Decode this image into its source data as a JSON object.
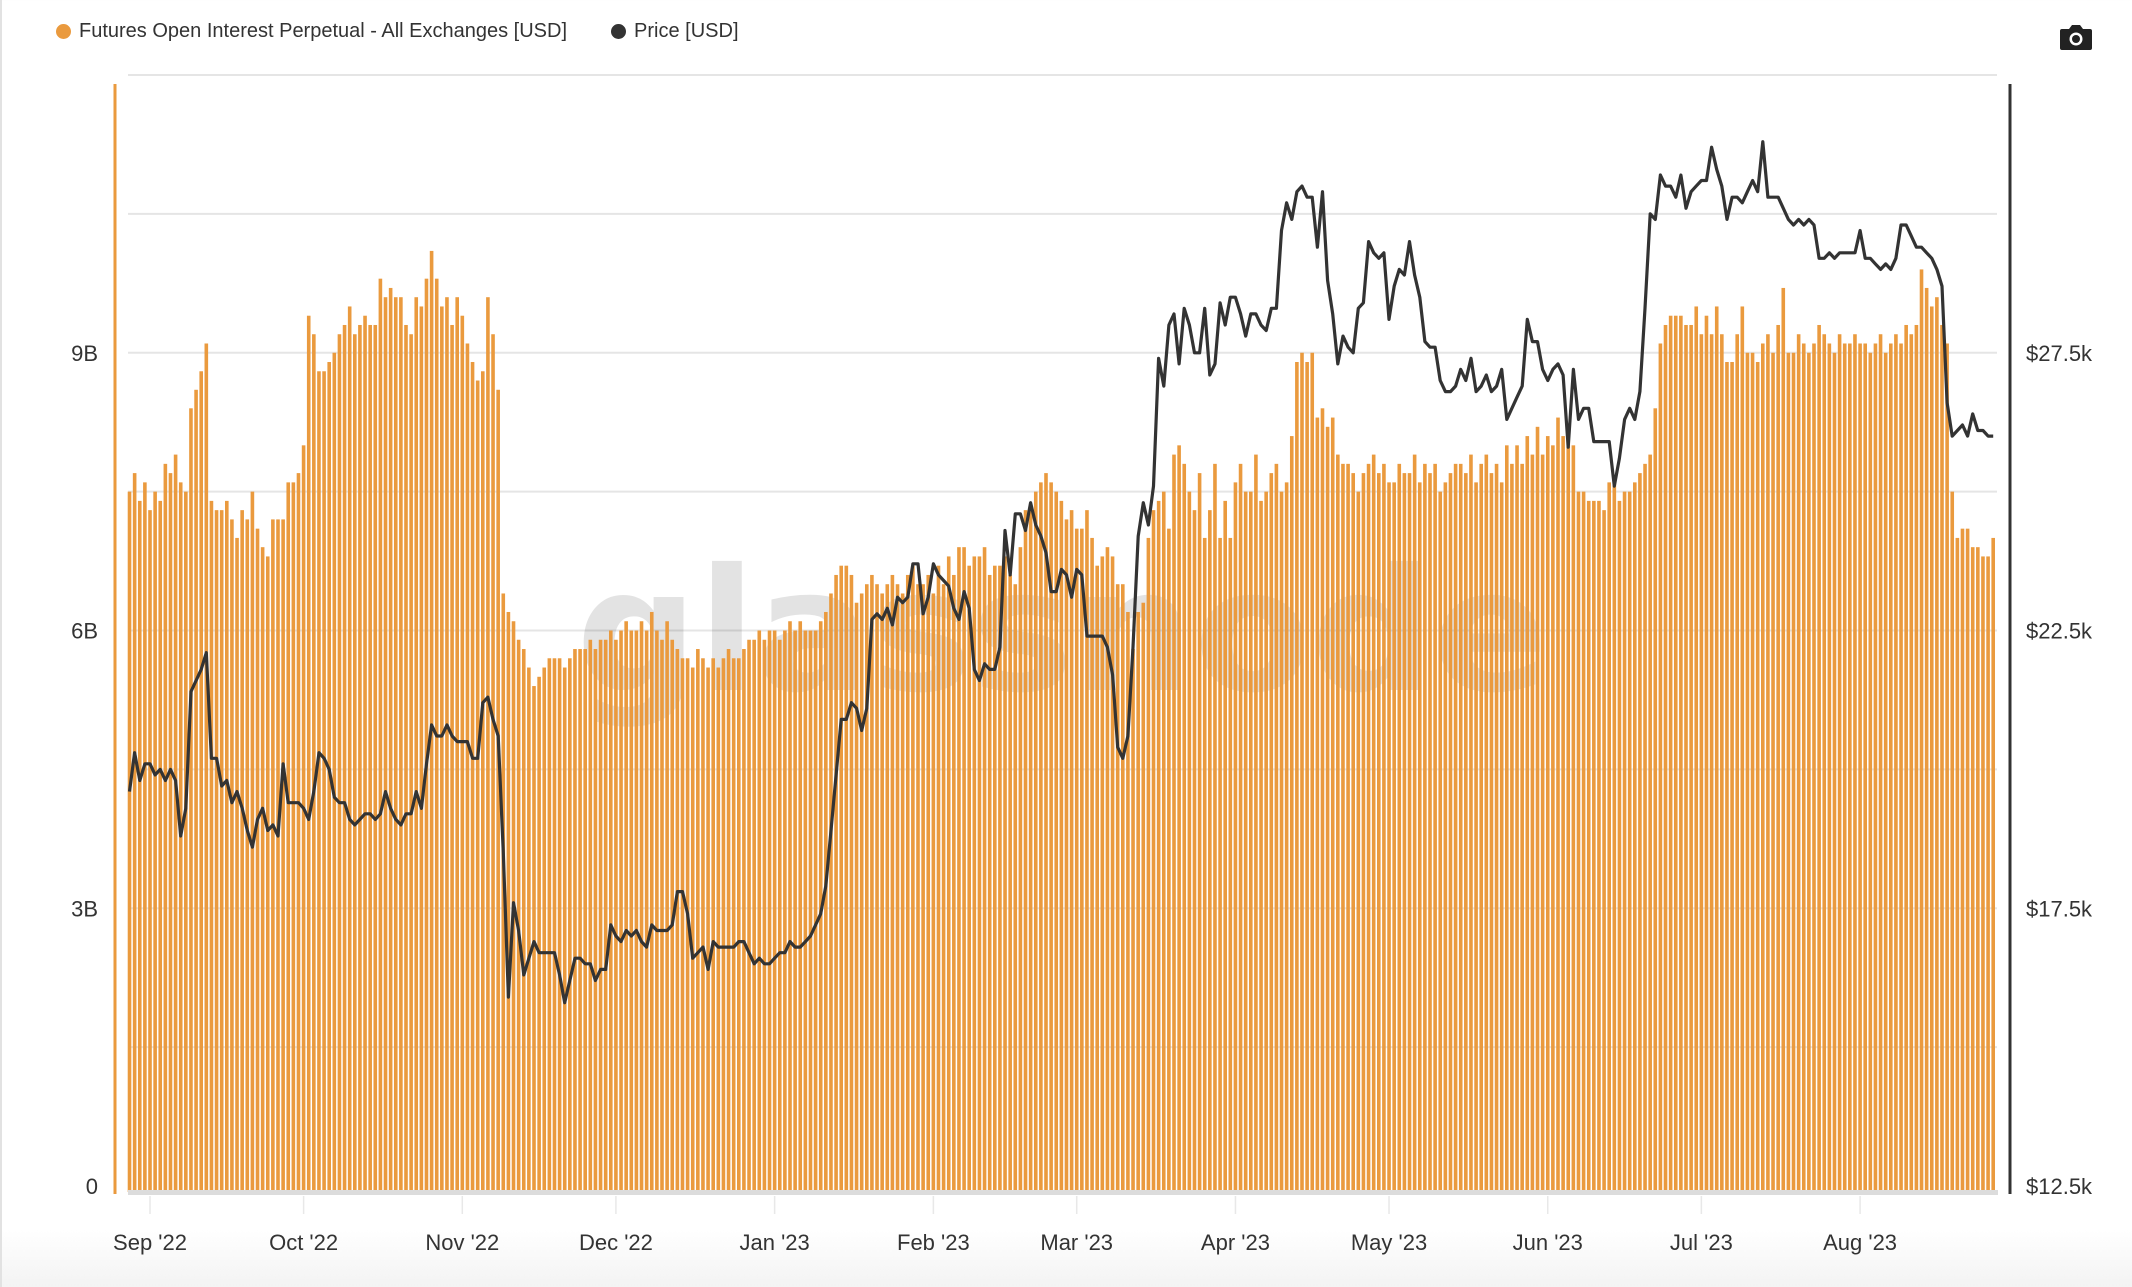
{
  "legend": [
    {
      "label": "Futures Open Interest Perpetual - All Exchanges [USD]",
      "color": "#ea9a3e"
    },
    {
      "label": "Price [USD]",
      "color": "#333333"
    }
  ],
  "toolbar": {
    "screenshot_icon": "camera-icon"
  },
  "watermark": "glassnode",
  "chart_data": {
    "type": "bar+line",
    "series": [
      {
        "name": "Futures Open Interest Perpetual - All Exchanges [USD]",
        "type": "bar",
        "axis": "left",
        "unit": "B USD",
        "color": "#ea9a3e"
      },
      {
        "name": "Price [USD]",
        "type": "line",
        "axis": "right",
        "unit": "k USD",
        "color": "#333333"
      }
    ],
    "left_axis": {
      "ylim": [
        0,
        12
      ],
      "ticks": [
        0,
        3,
        6,
        9
      ],
      "tick_labels": [
        "0",
        "3B",
        "6B",
        "9B"
      ],
      "gridline_step": 1.5
    },
    "right_axis": {
      "ylim": [
        12.5,
        32.5
      ],
      "ticks": [
        12.5,
        17.5,
        22.5,
        27.5
      ],
      "tick_labels": [
        "$12.5k",
        "$17.5k",
        "$22.5k",
        "$27.5k"
      ]
    },
    "x_ticks": [
      {
        "date": "2022-09-01",
        "label": "Sep '22"
      },
      {
        "date": "2022-10-01",
        "label": "Oct '22"
      },
      {
        "date": "2022-11-01",
        "label": "Nov '22"
      },
      {
        "date": "2022-12-01",
        "label": "Dec '22"
      },
      {
        "date": "2023-01-01",
        "label": "Jan '23"
      },
      {
        "date": "2023-02-01",
        "label": "Feb '23"
      },
      {
        "date": "2023-03-01",
        "label": "Mar '23"
      },
      {
        "date": "2023-04-01",
        "label": "Apr '23"
      },
      {
        "date": "2023-05-01",
        "label": "May '23"
      },
      {
        "date": "2023-06-01",
        "label": "Jun '23"
      },
      {
        "date": "2023-07-01",
        "label": "Jul '23"
      },
      {
        "date": "2023-08-01",
        "label": "Aug '23"
      }
    ],
    "grid": true,
    "legend_position": "top-left",
    "daily": [
      {
        "month": "2022-08",
        "day_range": [
          28,
          31
        ],
        "oi": [
          7.5,
          7.7,
          7.4,
          7.6
        ],
        "price": [
          19.6,
          20.3,
          19.8,
          20.1
        ]
      },
      {
        "month": "2022-09",
        "day_range": [
          1,
          30
        ],
        "oi": [
          7.3,
          7.5,
          7.4,
          7.8,
          7.7,
          7.9,
          7.6,
          7.5,
          8.4,
          8.6,
          8.8,
          9.1,
          7.4,
          7.3,
          7.3,
          7.4,
          7.2,
          7.0,
          7.3,
          7.2,
          7.5,
          7.1,
          6.9,
          6.8,
          7.2,
          7.2,
          7.2,
          7.6,
          7.6,
          7.7
        ],
        "price": [
          20.1,
          19.9,
          20.0,
          19.8,
          20.0,
          19.8,
          18.8,
          19.3,
          21.4,
          21.6,
          21.8,
          22.1,
          20.2,
          20.2,
          19.7,
          19.8,
          19.4,
          19.6,
          19.3,
          18.9,
          18.6,
          19.1,
          19.3,
          18.9,
          19.0,
          18.8,
          20.1,
          19.4,
          19.4,
          19.4
        ]
      },
      {
        "month": "2022-10",
        "day_range": [
          1,
          31
        ],
        "oi": [
          8.0,
          9.4,
          9.2,
          8.8,
          8.8,
          8.9,
          9.0,
          9.2,
          9.3,
          9.5,
          9.2,
          9.3,
          9.4,
          9.3,
          9.3,
          9.8,
          9.6,
          9.7,
          9.6,
          9.6,
          9.3,
          9.2,
          9.6,
          9.5,
          9.8,
          10.1,
          9.8,
          9.5,
          9.6,
          9.3,
          9.6
        ],
        "price": [
          19.3,
          19.1,
          19.6,
          20.3,
          20.2,
          20.0,
          19.5,
          19.4,
          19.4,
          19.1,
          19.0,
          19.1,
          19.2,
          19.2,
          19.1,
          19.2,
          19.6,
          19.3,
          19.1,
          19.0,
          19.2,
          19.2,
          19.6,
          19.3,
          20.1,
          20.8,
          20.6,
          20.6,
          20.8,
          20.6,
          20.5
        ]
      },
      {
        "month": "2022-11",
        "day_range": [
          1,
          30
        ],
        "oi": [
          9.4,
          9.1,
          8.9,
          8.7,
          8.8,
          9.6,
          9.2,
          8.6,
          6.4,
          6.2,
          6.1,
          5.9,
          5.8,
          5.6,
          5.4,
          5.5,
          5.6,
          5.7,
          5.7,
          5.7,
          5.6,
          5.7,
          5.8,
          5.8,
          5.8,
          5.9,
          5.8,
          5.9,
          5.9,
          6.0
        ],
        "price": [
          20.5,
          20.5,
          20.2,
          20.2,
          21.2,
          21.3,
          20.9,
          20.6,
          18.5,
          15.9,
          17.6,
          17.1,
          16.3,
          16.6,
          16.9,
          16.7,
          16.7,
          16.7,
          16.7,
          16.3,
          15.8,
          16.2,
          16.6,
          16.6,
          16.5,
          16.5,
          16.2,
          16.4,
          16.4,
          17.2
        ]
      },
      {
        "month": "2022-12",
        "day_range": [
          1,
          31
        ],
        "oi": [
          5.9,
          6.0,
          6.1,
          6.0,
          6.0,
          6.1,
          6.0,
          6.2,
          6.0,
          5.9,
          6.1,
          5.9,
          5.8,
          5.7,
          5.7,
          5.6,
          5.8,
          5.7,
          5.6,
          5.7,
          5.6,
          5.7,
          5.8,
          5.7,
          5.7,
          5.8,
          5.9,
          5.9,
          6.0,
          5.9,
          6.0
        ],
        "price": [
          17.0,
          16.9,
          17.1,
          17.0,
          17.1,
          16.9,
          16.8,
          17.2,
          17.1,
          17.1,
          17.1,
          17.2,
          17.8,
          17.8,
          17.4,
          16.6,
          16.7,
          16.8,
          16.4,
          16.9,
          16.8,
          16.8,
          16.8,
          16.8,
          16.9,
          16.9,
          16.7,
          16.5,
          16.6,
          16.5,
          16.5
        ]
      },
      {
        "month": "2023-01",
        "day_range": [
          1,
          31
        ],
        "oi": [
          6.0,
          5.9,
          6.0,
          6.1,
          6.0,
          6.1,
          6.0,
          6.0,
          6.0,
          6.1,
          6.2,
          6.4,
          6.6,
          6.7,
          6.7,
          6.6,
          6.3,
          6.4,
          6.5,
          6.6,
          6.5,
          6.4,
          6.5,
          6.6,
          6.5,
          6.4,
          6.6,
          6.7,
          6.5,
          6.5,
          6.6
        ],
        "price": [
          16.6,
          16.7,
          16.7,
          16.9,
          16.8,
          16.8,
          16.9,
          17.0,
          17.2,
          17.4,
          17.9,
          18.9,
          19.9,
          20.9,
          20.9,
          21.2,
          21.1,
          20.7,
          21.1,
          22.7,
          22.8,
          22.7,
          22.9,
          22.6,
          23.1,
          23.0,
          23.1,
          23.7,
          23.7,
          22.8,
          23.1
        ]
      },
      {
        "month": "2023-02",
        "day_range": [
          1,
          28
        ],
        "oi": [
          6.4,
          6.7,
          6.5,
          6.8,
          6.6,
          6.9,
          6.9,
          6.7,
          6.8,
          6.8,
          6.9,
          6.6,
          6.7,
          6.7,
          6.8,
          6.6,
          6.5,
          6.9,
          7.3,
          7.3,
          7.5,
          7.6,
          7.7,
          7.6,
          7.5,
          7.4,
          7.2,
          7.3
        ],
        "price": [
          23.7,
          23.5,
          23.4,
          23.3,
          22.9,
          22.7,
          23.2,
          22.9,
          21.8,
          21.6,
          21.9,
          21.8,
          21.8,
          22.2,
          24.3,
          23.5,
          24.6,
          24.6,
          24.3,
          24.8,
          24.4,
          24.2,
          23.9,
          23.2,
          23.2,
          23.6,
          23.5,
          23.1
        ]
      },
      {
        "month": "2023-03",
        "day_range": [
          1,
          31
        ],
        "oi": [
          7.1,
          7.1,
          7.3,
          7.0,
          6.7,
          6.8,
          6.9,
          6.8,
          6.5,
          6.5,
          6.2,
          5.8,
          6.2,
          6.3,
          7.0,
          7.3,
          7.4,
          7.5,
          7.1,
          7.9,
          8.0,
          7.8,
          7.5,
          7.3,
          7.7,
          7.0,
          7.3,
          7.8,
          7.0,
          7.4,
          7.0
        ],
        "price": [
          23.6,
          23.5,
          22.4,
          22.4,
          22.4,
          22.4,
          22.2,
          21.7,
          20.4,
          20.2,
          20.6,
          22.2,
          24.2,
          24.8,
          24.4,
          25.1,
          27.4,
          26.9,
          28.0,
          28.2,
          27.3,
          28.3,
          28.0,
          27.5,
          27.5,
          28.3,
          27.1,
          27.3,
          28.4,
          28.0,
          28.5
        ]
      },
      {
        "month": "2023-04",
        "day_range": [
          1,
          30
        ],
        "oi": [
          7.6,
          7.8,
          7.5,
          7.5,
          7.9,
          7.4,
          7.5,
          7.7,
          7.8,
          7.5,
          7.6,
          8.1,
          8.9,
          9.0,
          8.9,
          9.0,
          8.3,
          8.4,
          8.2,
          8.3,
          7.9,
          7.8,
          7.8,
          7.7,
          7.5,
          7.7,
          7.8,
          7.9,
          7.7,
          7.8
        ],
        "price": [
          28.5,
          28.2,
          27.8,
          28.2,
          28.2,
          28.0,
          27.9,
          28.3,
          28.3,
          29.7,
          30.2,
          29.9,
          30.4,
          30.5,
          30.3,
          30.3,
          29.4,
          30.4,
          28.8,
          28.2,
          27.3,
          27.8,
          27.6,
          27.5,
          28.3,
          28.4,
          29.5,
          29.3,
          29.2,
          29.3
        ]
      },
      {
        "month": "2023-05",
        "day_range": [
          1,
          31
        ],
        "oi": [
          7.6,
          7.6,
          7.8,
          7.7,
          7.7,
          7.9,
          7.6,
          7.8,
          7.7,
          7.8,
          7.5,
          7.6,
          7.7,
          7.8,
          7.8,
          7.7,
          7.9,
          7.6,
          7.8,
          7.9,
          7.7,
          7.8,
          7.6,
          8.0,
          7.8,
          8.0,
          7.8,
          8.1,
          7.9,
          8.2,
          7.9
        ],
        "price": [
          28.1,
          28.7,
          29.0,
          28.9,
          29.5,
          28.9,
          28.5,
          27.7,
          27.6,
          27.6,
          27.0,
          26.8,
          26.8,
          26.9,
          27.2,
          27.0,
          27.4,
          26.8,
          26.9,
          27.1,
          26.8,
          26.9,
          27.2,
          26.3,
          26.5,
          26.7,
          26.9,
          28.1,
          27.7,
          27.7,
          27.2
        ]
      },
      {
        "month": "2023-06",
        "day_range": [
          1,
          30
        ],
        "oi": [
          8.1,
          8.0,
          8.3,
          8.1,
          8.1,
          8.0,
          7.5,
          7.5,
          7.4,
          7.4,
          7.4,
          7.3,
          7.6,
          7.6,
          7.4,
          7.5,
          7.5,
          7.6,
          7.7,
          7.8,
          7.9,
          8.4,
          9.1,
          9.3,
          9.4,
          9.4,
          9.4,
          9.3,
          9.3,
          9.5
        ],
        "price": [
          27.0,
          27.2,
          27.3,
          27.1,
          25.8,
          27.2,
          26.3,
          26.5,
          26.5,
          25.9,
          25.9,
          25.9,
          25.9,
          25.1,
          25.6,
          26.3,
          26.5,
          26.3,
          26.8,
          28.3,
          30.0,
          29.9,
          30.7,
          30.5,
          30.5,
          30.3,
          30.7,
          30.1,
          30.4,
          30.5
        ]
      },
      {
        "month": "2023-07",
        "day_range": [
          1,
          31
        ],
        "oi": [
          9.2,
          9.4,
          9.2,
          9.5,
          9.2,
          8.9,
          8.9,
          9.2,
          9.5,
          9.0,
          9.0,
          8.9,
          9.1,
          9.2,
          9.0,
          9.3,
          9.7,
          9.0,
          9.0,
          9.2,
          9.1,
          9.0,
          9.1,
          9.3,
          9.2,
          9.1,
          9.0,
          9.2,
          9.1,
          9.1,
          9.2
        ],
        "price": [
          30.6,
          30.6,
          31.2,
          30.8,
          30.5,
          29.9,
          30.3,
          30.3,
          30.2,
          30.4,
          30.6,
          30.4,
          31.3,
          30.3,
          30.3,
          30.3,
          30.1,
          29.9,
          29.8,
          29.9,
          29.8,
          29.9,
          29.8,
          29.2,
          29.2,
          29.3,
          29.2,
          29.3,
          29.3,
          29.3,
          29.3
        ]
      },
      {
        "month": "2023-08",
        "day_range": [
          1,
          27
        ],
        "oi": [
          9.1,
          9.1,
          9.0,
          9.1,
          9.2,
          9.0,
          9.1,
          9.2,
          9.1,
          9.3,
          9.2,
          9.3,
          9.9,
          9.7,
          9.5,
          9.6,
          9.3,
          9.1,
          7.5,
          7.0,
          7.1,
          7.1,
          6.9,
          6.9,
          6.8,
          6.8,
          7.0
        ],
        "price": [
          29.7,
          29.2,
          29.2,
          29.1,
          29.0,
          29.1,
          29.0,
          29.2,
          29.8,
          29.8,
          29.6,
          29.4,
          29.4,
          29.3,
          29.2,
          29.0,
          28.7,
          26.6,
          26.0,
          26.1,
          26.2,
          26.0,
          26.4,
          26.1,
          26.1,
          26.0,
          26.0
        ]
      }
    ]
  }
}
